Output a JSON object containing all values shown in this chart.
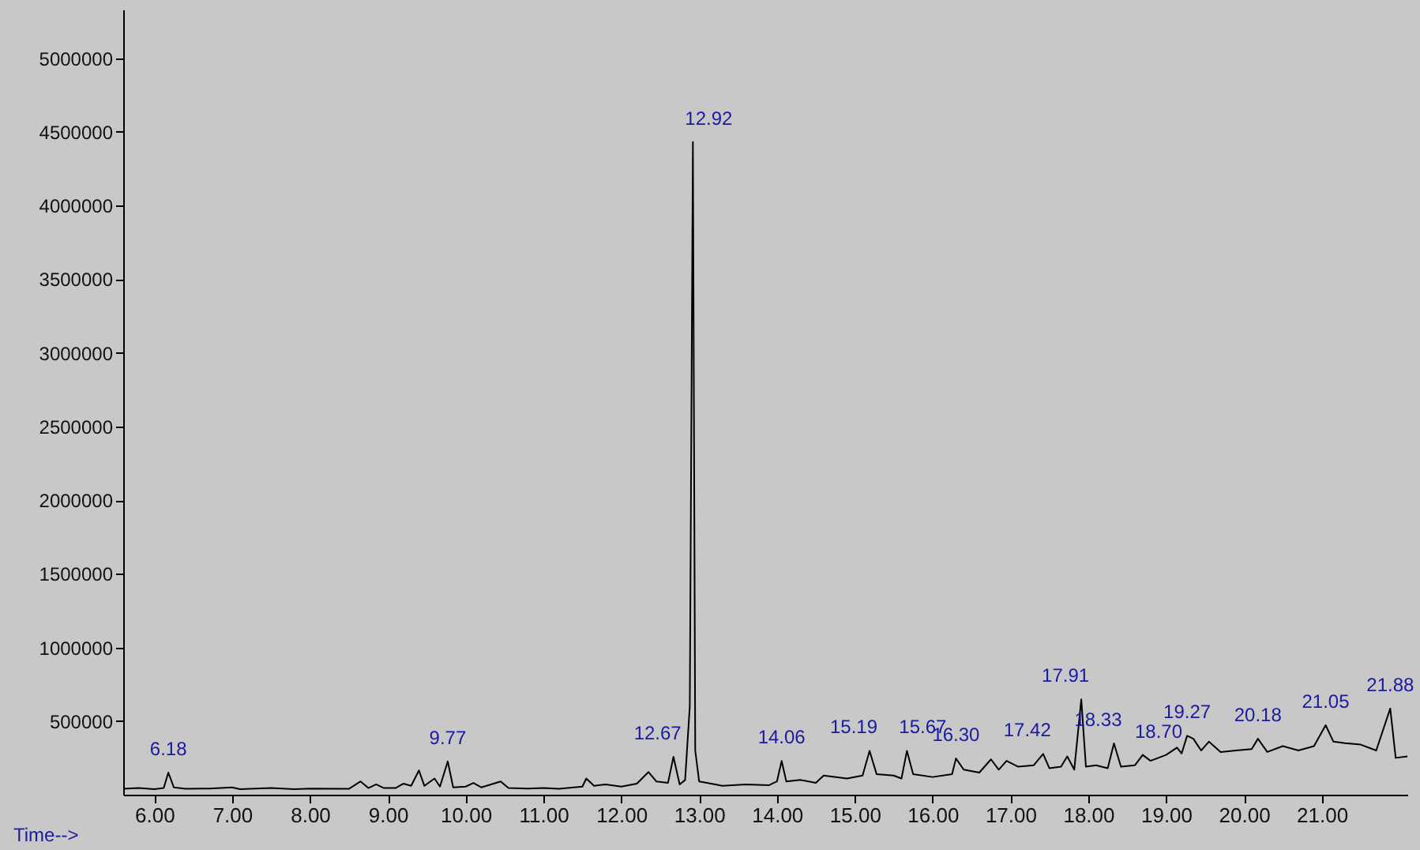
{
  "chart_data": {
    "type": "line",
    "xlabel": "Time-->",
    "x": [
      5.6,
      5.8,
      6.0,
      6.12,
      6.18,
      6.25,
      6.4,
      6.7,
      7.0,
      7.1,
      7.5,
      7.8,
      8.0,
      8.5,
      8.65,
      8.75,
      8.85,
      8.95,
      9.1,
      9.2,
      9.3,
      9.4,
      9.47,
      9.6,
      9.67,
      9.77,
      9.84,
      10.0,
      10.1,
      10.2,
      10.45,
      10.55,
      10.8,
      11.0,
      11.2,
      11.5,
      11.55,
      11.65,
      11.8,
      12.0,
      12.2,
      12.35,
      12.45,
      12.6,
      12.67,
      12.75,
      12.82,
      12.88,
      12.92,
      12.95,
      13.0,
      13.1,
      13.3,
      13.6,
      13.9,
      14.0,
      14.06,
      14.12,
      14.3,
      14.5,
      14.6,
      14.9,
      15.1,
      15.19,
      15.28,
      15.5,
      15.6,
      15.67,
      15.75,
      16.0,
      16.25,
      16.3,
      16.4,
      16.6,
      16.75,
      16.85,
      16.95,
      17.1,
      17.3,
      17.42,
      17.5,
      17.65,
      17.73,
      17.82,
      17.91,
      17.97,
      18.1,
      18.25,
      18.33,
      18.42,
      18.6,
      18.7,
      18.8,
      19.0,
      19.14,
      19.2,
      19.27,
      19.35,
      19.45,
      19.55,
      19.7,
      19.9,
      20.1,
      20.18,
      20.3,
      20.5,
      20.7,
      20.9,
      21.05,
      21.15,
      21.3,
      21.5,
      21.7,
      21.88,
      21.95,
      22.1
    ],
    "series": [
      {
        "color": "#000000",
        "values": [
          40000,
          45000,
          38000,
          45000,
          150000,
          50000,
          40000,
          42000,
          50000,
          38000,
          45000,
          38000,
          42000,
          40000,
          90000,
          45000,
          70000,
          45000,
          45000,
          75000,
          60000,
          165000,
          60000,
          110000,
          55000,
          226000,
          50000,
          55000,
          80000,
          50000,
          90000,
          45000,
          42000,
          45000,
          40000,
          55000,
          110000,
          60000,
          70000,
          55000,
          75000,
          154000,
          90000,
          80000,
          257000,
          70000,
          100000,
          600000,
          4430000,
          300000,
          90000,
          80000,
          60000,
          70000,
          65000,
          90000,
          229000,
          90000,
          100000,
          80000,
          130000,
          110000,
          130000,
          298000,
          140000,
          130000,
          110000,
          298000,
          140000,
          120000,
          140000,
          246000,
          170000,
          150000,
          240000,
          170000,
          230000,
          190000,
          200000,
          277000,
          180000,
          190000,
          260000,
          170000,
          647000,
          190000,
          200000,
          180000,
          349000,
          190000,
          200000,
          270000,
          230000,
          270000,
          320000,
          280000,
          400000,
          380000,
          300000,
          360000,
          290000,
          300000,
          310000,
          380000,
          290000,
          330000,
          300000,
          330000,
          472000,
          360000,
          350000,
          340000,
          300000,
          585000,
          250000,
          260000
        ]
      }
    ],
    "xlim": [
      5.6,
      22.1
    ],
    "ylim": [
      0,
      5330000
    ],
    "xticks": [
      {
        "value": 6,
        "label": "6.00"
      },
      {
        "value": 7,
        "label": "7.00"
      },
      {
        "value": 8,
        "label": "8.00"
      },
      {
        "value": 9,
        "label": "9.00"
      },
      {
        "value": 10,
        "label": "10.00"
      },
      {
        "value": 11,
        "label": "11.00"
      },
      {
        "value": 12,
        "label": "12.00"
      },
      {
        "value": 13,
        "label": "13.00"
      },
      {
        "value": 14,
        "label": "14.00"
      },
      {
        "value": 15,
        "label": "15.00"
      },
      {
        "value": 16,
        "label": "16.00"
      },
      {
        "value": 17,
        "label": "17.00"
      },
      {
        "value": 18,
        "label": "18.00"
      },
      {
        "value": 19,
        "label": "19.00"
      },
      {
        "value": 20,
        "label": "20.00"
      },
      {
        "value": 21,
        "label": "21.00"
      }
    ],
    "yticks": [
      500000,
      1000000,
      1500000,
      2000000,
      2500000,
      3000000,
      3500000,
      4000000,
      4500000,
      5000000
    ],
    "annotations": [
      {
        "text": "6.18",
        "x": 6.18,
        "y": 150000
      },
      {
        "text": "9.77",
        "x": 9.77,
        "y": 226000
      },
      {
        "text": "12.67",
        "x": 12.67,
        "y": 257000
      },
      {
        "text": "12.92",
        "x": 12.92,
        "y": 4430000
      },
      {
        "text": "14.06",
        "x": 14.06,
        "y": 229000
      },
      {
        "text": "15.19",
        "x": 15.19,
        "y": 298000
      },
      {
        "text": "15.67",
        "x": 15.67,
        "y": 298000
      },
      {
        "text": "16.30",
        "x": 16.3,
        "y": 246000
      },
      {
        "text": "17.42",
        "x": 17.42,
        "y": 277000
      },
      {
        "text": "17.91",
        "x": 17.91,
        "y": 647000
      },
      {
        "text": "18.33",
        "x": 18.33,
        "y": 349000
      },
      {
        "text": "18.70",
        "x": 18.7,
        "y": 270000
      },
      {
        "text": "19.27",
        "x": 19.27,
        "y": 400000
      },
      {
        "text": "20.18",
        "x": 20.18,
        "y": 380000
      },
      {
        "text": "21.05",
        "x": 21.05,
        "y": 472000
      },
      {
        "text": "21.88",
        "x": 21.88,
        "y": 585000
      }
    ],
    "grid": false,
    "line_style": "solid",
    "marker": "none"
  }
}
